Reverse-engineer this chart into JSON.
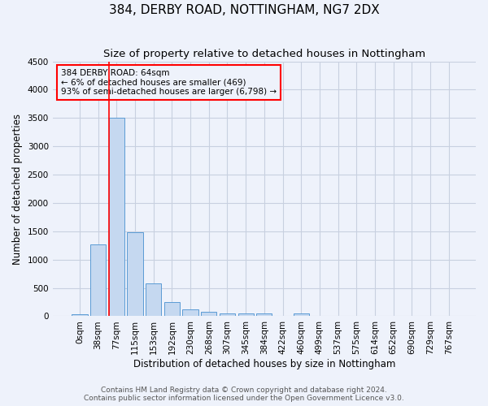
{
  "title": "384, DERBY ROAD, NOTTINGHAM, NG7 2DX",
  "subtitle": "Size of property relative to detached houses in Nottingham",
  "xlabel": "Distribution of detached houses by size in Nottingham",
  "ylabel": "Number of detached properties",
  "footnote1": "Contains HM Land Registry data © Crown copyright and database right 2024.",
  "footnote2": "Contains public sector information licensed under the Open Government Licence v3.0.",
  "bar_labels": [
    "0sqm",
    "38sqm",
    "77sqm",
    "115sqm",
    "153sqm",
    "192sqm",
    "230sqm",
    "268sqm",
    "307sqm",
    "345sqm",
    "384sqm",
    "422sqm",
    "460sqm",
    "499sqm",
    "537sqm",
    "575sqm",
    "614sqm",
    "652sqm",
    "690sqm",
    "729sqm",
    "767sqm"
  ],
  "bar_values": [
    40,
    1270,
    3500,
    1480,
    580,
    245,
    120,
    85,
    55,
    45,
    55,
    0,
    55,
    0,
    0,
    0,
    0,
    0,
    0,
    0,
    0
  ],
  "bar_color": "#c5d8f0",
  "bar_edge_color": "#5b9bd5",
  "ylim": [
    0,
    4500
  ],
  "yticks": [
    0,
    500,
    1000,
    1500,
    2000,
    2500,
    3000,
    3500,
    4000,
    4500
  ],
  "marker_color": "red",
  "annotation_text": "384 DERBY ROAD: 64sqm\n← 6% of detached houses are smaller (469)\n93% of semi-detached houses are larger (6,798) →",
  "annotation_box_color": "red",
  "background_color": "#eef2fb",
  "grid_color": "#c8d0e0",
  "title_fontsize": 11,
  "subtitle_fontsize": 9.5,
  "axis_label_fontsize": 8.5,
  "tick_fontsize": 7.5,
  "footnote_fontsize": 6.5
}
